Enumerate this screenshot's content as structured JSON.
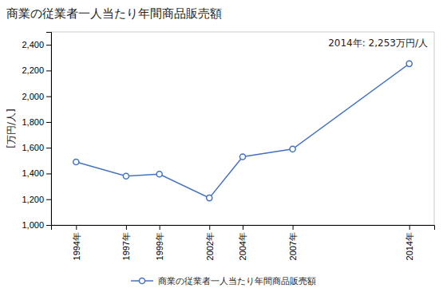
{
  "chart_data": {
    "type": "line",
    "title": "商業の従業者一人当たり年間商品販売額",
    "y_label": "[万円/人]",
    "annotation": "2014年: 2,253万円/人",
    "x": [
      1994,
      1997,
      1999,
      2002,
      2004,
      2007,
      2014
    ],
    "series": [
      {
        "name": "商業の従業者一人当たり年間商品販売額",
        "color": "#4472C4",
        "marker": "circle",
        "values": [
          1490,
          1380,
          1395,
          1210,
          1530,
          1590,
          2253
        ]
      }
    ],
    "xlim": [
      1992.5,
      2015.5
    ],
    "xticks": [
      {
        "value": 1994,
        "label": "1994年"
      },
      {
        "value": 1997,
        "label": "1997年"
      },
      {
        "value": 1999,
        "label": "1999年"
      },
      {
        "value": 2002,
        "label": "2002年"
      },
      {
        "value": 2004,
        "label": "2004年"
      },
      {
        "value": 2007,
        "label": "2007年"
      },
      {
        "value": 2014,
        "label": "2014年"
      }
    ],
    "ylim": [
      1000,
      2500
    ],
    "yticks": [
      {
        "value": 1000,
        "label": "1,000"
      },
      {
        "value": 1200,
        "label": "1,200"
      },
      {
        "value": 1400,
        "label": "1,400"
      },
      {
        "value": 1600,
        "label": "1,600"
      },
      {
        "value": 1800,
        "label": "1,800"
      },
      {
        "value": 2000,
        "label": "2,000"
      },
      {
        "value": 2200,
        "label": "2,200"
      },
      {
        "value": 2400,
        "label": "2,400"
      }
    ],
    "grid": false,
    "legend": "bottom"
  }
}
